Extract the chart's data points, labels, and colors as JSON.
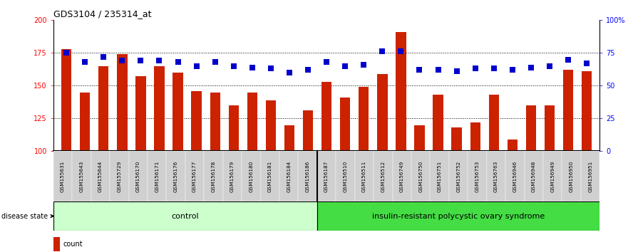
{
  "title": "GDS3104 / 235314_at",
  "samples": [
    "GSM155631",
    "GSM155643",
    "GSM155644",
    "GSM155729",
    "GSM156170",
    "GSM156171",
    "GSM156176",
    "GSM156177",
    "GSM156178",
    "GSM156179",
    "GSM156180",
    "GSM156181",
    "GSM156184",
    "GSM156186",
    "GSM156187",
    "GSM156510",
    "GSM156511",
    "GSM156512",
    "GSM156749",
    "GSM156750",
    "GSM156751",
    "GSM156752",
    "GSM156753",
    "GSM156763",
    "GSM156946",
    "GSM156948",
    "GSM156949",
    "GSM156950",
    "GSM156951"
  ],
  "counts": [
    178,
    145,
    165,
    174,
    157,
    165,
    160,
    146,
    145,
    135,
    145,
    139,
    120,
    131,
    153,
    141,
    149,
    159,
    191,
    120,
    143,
    118,
    122,
    143,
    109,
    135,
    135,
    162,
    161
  ],
  "percentiles": [
    75,
    68,
    72,
    69,
    69,
    69,
    68,
    65,
    68,
    65,
    64,
    63,
    60,
    62,
    68,
    65,
    66,
    76,
    76,
    62,
    62,
    61,
    63,
    63,
    62,
    64,
    65,
    70,
    67
  ],
  "control_count": 14,
  "disease_label": "insulin-resistant polycystic ovary syndrome",
  "control_label": "control",
  "bar_color": "#cc2200",
  "dot_color": "#0000cc",
  "ylim_left": [
    100,
    200
  ],
  "ylim_right": [
    0,
    100
  ],
  "yticks_left": [
    100,
    125,
    150,
    175,
    200
  ],
  "yticks_right": [
    0,
    25,
    50,
    75
  ],
  "grid_lines": [
    125,
    150,
    175
  ],
  "bg_color": "#ffffff",
  "plot_bg": "#ffffff",
  "xtick_bg": "#d0d0d0",
  "control_color": "#ccffcc",
  "disease_color": "#44dd44"
}
